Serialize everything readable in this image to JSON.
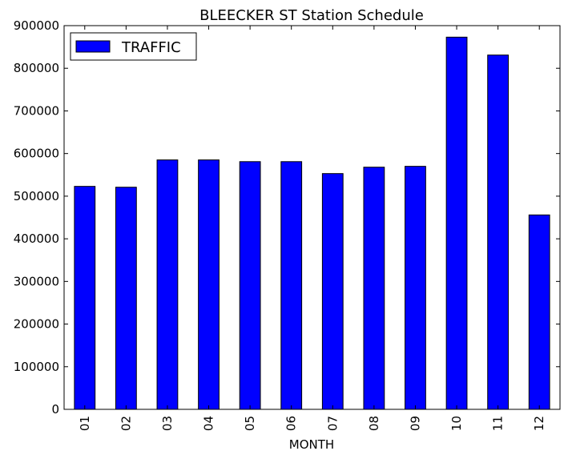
{
  "chart_data": {
    "type": "bar",
    "title": "BLEECKER ST Station Schedule",
    "xlabel": "MONTH",
    "ylabel": "",
    "ylim": [
      0,
      900000
    ],
    "yticks": [
      0,
      100000,
      200000,
      300000,
      400000,
      500000,
      600000,
      700000,
      800000,
      900000
    ],
    "ytick_labels": [
      "0",
      "100000",
      "200000",
      "300000",
      "400000",
      "500000",
      "600000",
      "700000",
      "800000",
      "900000"
    ],
    "categories": [
      "01",
      "02",
      "03",
      "04",
      "05",
      "06",
      "07",
      "08",
      "09",
      "10",
      "11",
      "12"
    ],
    "series": [
      {
        "name": "TRAFFIC",
        "color": "#0000ff",
        "values": [
          523000,
          521000,
          585000,
          585000,
          581000,
          581000,
          553000,
          568000,
          570000,
          873000,
          831000,
          456000
        ]
      }
    ],
    "grid": false,
    "legend_position": "top-left"
  }
}
